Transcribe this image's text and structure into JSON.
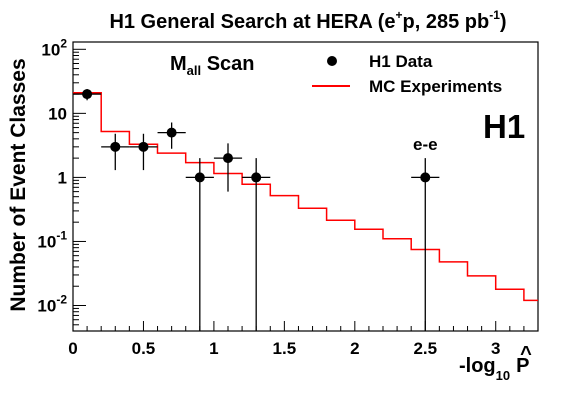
{
  "chart_data": {
    "type": "scatter",
    "title": {
      "main": "H1 General Search at HERA (e",
      "sup1": "+",
      "mid": "p, 285 pb",
      "sup2": "-1",
      "end": ")"
    },
    "ylabel": "Number of Event Classes",
    "xlabel": {
      "pre": "-log",
      "sub": "10",
      "post": "P",
      "hat": "^"
    },
    "scan_label": {
      "main": "M",
      "sub": "all",
      "post": " Scan"
    },
    "logo": "H1",
    "xlim": [
      0,
      3.3
    ],
    "ylim": [
      0.004,
      130
    ],
    "y_scale": "log",
    "x_ticks": [
      {
        "v": 0,
        "label": "0"
      },
      {
        "v": 0.5,
        "label": "0.5"
      },
      {
        "v": 1,
        "label": "1"
      },
      {
        "v": 1.5,
        "label": "1.5"
      },
      {
        "v": 2,
        "label": "2"
      },
      {
        "v": 2.5,
        "label": "2.5"
      },
      {
        "v": 3,
        "label": "3"
      }
    ],
    "y_ticks": [
      {
        "v": 0.01,
        "base": "10",
        "exp": "-2"
      },
      {
        "v": 0.1,
        "base": "10",
        "exp": "-1"
      },
      {
        "v": 1,
        "base": "1",
        "exp": ""
      },
      {
        "v": 10,
        "base": "10",
        "exp": ""
      },
      {
        "v": 100,
        "base": "10",
        "exp": "2"
      }
    ],
    "legend": {
      "position": "top-right",
      "entries": [
        {
          "label": "H1 Data",
          "marker": "dot"
        },
        {
          "label": "MC Experiments",
          "marker": "line"
        }
      ]
    },
    "series": [
      {
        "name": "H1 Data",
        "kind": "points",
        "color": "#000000",
        "bin_half_width": 0.1,
        "points": [
          {
            "x": 0.1,
            "y": 20,
            "y_lo": 16,
            "y_hi": 24
          },
          {
            "x": 0.3,
            "y": 3,
            "y_lo": 1.3,
            "y_hi": 4.8
          },
          {
            "x": 0.5,
            "y": 3,
            "y_lo": 1.3,
            "y_hi": 4.8
          },
          {
            "x": 0.7,
            "y": 5,
            "y_lo": 2.8,
            "y_hi": 7.2
          },
          {
            "x": 0.9,
            "y": 1,
            "y_lo": null,
            "y_hi": 2
          },
          {
            "x": 1.1,
            "y": 2,
            "y_lo": 0.6,
            "y_hi": 3.4
          },
          {
            "x": 1.3,
            "y": 1,
            "y_lo": null,
            "y_hi": 2
          },
          {
            "x": 2.5,
            "y": 1,
            "y_lo": null,
            "y_hi": 2
          }
        ]
      },
      {
        "name": "MC Experiments",
        "kind": "step",
        "color": "#ff0000",
        "bin_edges": [
          0,
          0.2,
          0.4,
          0.6,
          0.8,
          1.0,
          1.2,
          1.4,
          1.6,
          1.8,
          2.0,
          2.2,
          2.4,
          2.6,
          2.8,
          3.0,
          3.2,
          3.3
        ],
        "values": [
          21,
          5.2,
          3.3,
          2.4,
          1.7,
          1.15,
          0.78,
          0.52,
          0.33,
          0.215,
          0.155,
          0.11,
          0.075,
          0.048,
          0.029,
          0.018,
          0.012
        ]
      }
    ],
    "annotations": [
      {
        "text": "e-e",
        "x": 2.5,
        "y": 2
      }
    ]
  }
}
